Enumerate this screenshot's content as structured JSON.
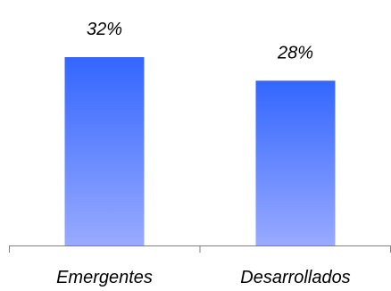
{
  "chart_data": {
    "type": "bar",
    "categories": [
      "Emergentes",
      "Desarrollados"
    ],
    "values": [
      32,
      28
    ],
    "data_labels": [
      "32%",
      "28%"
    ],
    "unit": "%",
    "ylim": [
      0,
      38
    ],
    "grid": false,
    "legend": "none",
    "bar_color_top": "#3366FF",
    "bar_color_bottom": "#99AAFF",
    "axis_color": "#808080"
  }
}
